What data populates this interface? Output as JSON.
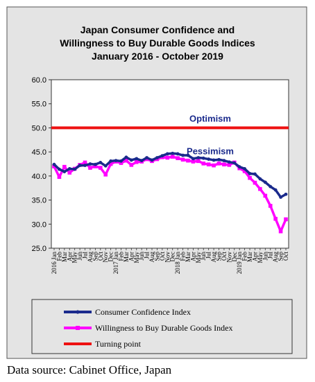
{
  "chart_data": {
    "type": "line",
    "title_lines": [
      "Japan Consumer Confidence and",
      "Willingness  to Buy Durable Goods Indices",
      "January 2016 - October 2019"
    ],
    "ylim": [
      25,
      60
    ],
    "y_ticks": [
      "60.0",
      "55.0",
      "50.0",
      "45.0",
      "40.0",
      "35.0",
      "30.0",
      "25.0"
    ],
    "x_year_labels": [
      "2016",
      "2017",
      "2018",
      "2019"
    ],
    "x_month_labels": [
      "Jan",
      "Feb",
      "Mar",
      "Apr",
      "May",
      "Jun",
      "Jul",
      "Aug",
      "Sep",
      "Oct",
      "Nov",
      "Dec"
    ],
    "x_last_month_count_2019": 10,
    "series": [
      {
        "name": "Consumer Confidence Index",
        "color": "#1a2a8c",
        "marker": "dot",
        "values": [
          42.4,
          41.4,
          40.9,
          41.5,
          41.4,
          42.2,
          42.2,
          42.5,
          42.4,
          42.8,
          42.1,
          43.1,
          43.2,
          43.1,
          43.9,
          43.3,
          43.6,
          43.2,
          43.8,
          43.3,
          43.8,
          44.2,
          44.6,
          44.7,
          44.6,
          44.3,
          44.3,
          43.6,
          43.8,
          43.7,
          43.5,
          43.3,
          43.4,
          43.2,
          42.9,
          42.7,
          41.9,
          41.5,
          40.5,
          40.4,
          39.4,
          38.7,
          37.8,
          37.1,
          35.6,
          36.2
        ]
      },
      {
        "name": "Willingness to Buy Durable Goods Index",
        "color": "#ff00ff",
        "marker": "square",
        "values": [
          42.0,
          39.8,
          41.9,
          40.7,
          41.5,
          42.3,
          42.8,
          41.7,
          42.0,
          41.7,
          40.3,
          42.5,
          43.0,
          42.7,
          43.2,
          42.3,
          42.9,
          43.0,
          43.5,
          43.1,
          43.5,
          43.9,
          43.8,
          44.0,
          43.7,
          43.4,
          43.2,
          43.0,
          43.1,
          42.6,
          42.4,
          42.2,
          42.6,
          42.4,
          42.3,
          42.8,
          41.6,
          41.0,
          39.6,
          38.6,
          37.3,
          35.9,
          33.8,
          31.1,
          28.5,
          31.0
        ]
      },
      {
        "name": "Turning point",
        "color": "#ee1111",
        "marker": "none",
        "values": [
          50,
          50
        ]
      }
    ],
    "annotations": [
      {
        "text": "Optimism",
        "near_value": 50,
        "position": "above"
      },
      {
        "text": "Pessimism",
        "near_value": 50,
        "position": "below"
      }
    ],
    "grid": false,
    "legend_position": "bottom"
  },
  "source_note": "Data source: Cabinet Office, Japan"
}
